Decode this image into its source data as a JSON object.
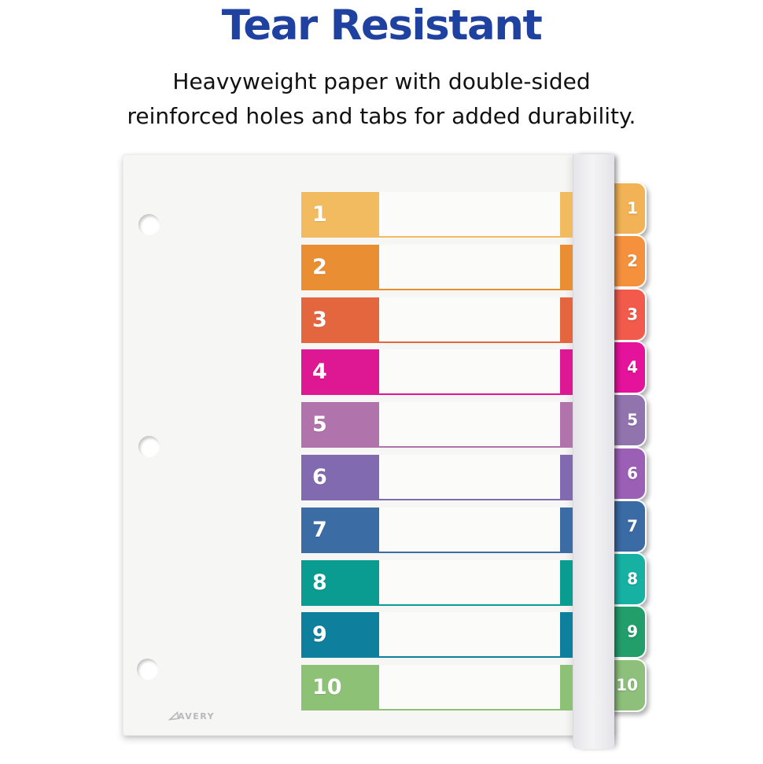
{
  "header": {
    "title": "Tear Resistant",
    "subtitle_line1": "Heavyweight paper with double-sided",
    "subtitle_line2": "reinforced holes and tabs for added durability.",
    "title_color": "#1F41A0",
    "subtitle_color": "#111111"
  },
  "divider": {
    "brand_logo": "AVERY",
    "paper_color": "#F6F6F5",
    "binding_strip_color": "#EFEFF2",
    "rows": [
      {
        "num": "1",
        "row_color": "#F2BB60",
        "tab_color": "#F1B356"
      },
      {
        "num": "2",
        "row_color": "#E98E33",
        "tab_color": "#F5913C"
      },
      {
        "num": "3",
        "row_color": "#E4663F",
        "tab_color": "#F25B4B"
      },
      {
        "num": "4",
        "row_color": "#DE1793",
        "tab_color": "#E5129B"
      },
      {
        "num": "5",
        "row_color": "#B173AC",
        "tab_color": "#9173AE"
      },
      {
        "num": "6",
        "row_color": "#826AB1",
        "tab_color": "#9B5FB6"
      },
      {
        "num": "7",
        "row_color": "#3B6CA4",
        "tab_color": "#3A6BA5"
      },
      {
        "num": "8",
        "row_color": "#0A9B91",
        "tab_color": "#17B1A3"
      },
      {
        "num": "9",
        "row_color": "#0E7F9C",
        "tab_color": "#229E6B"
      },
      {
        "num": "10",
        "row_color": "#8DC276",
        "tab_color": "#8EC07C"
      }
    ]
  }
}
